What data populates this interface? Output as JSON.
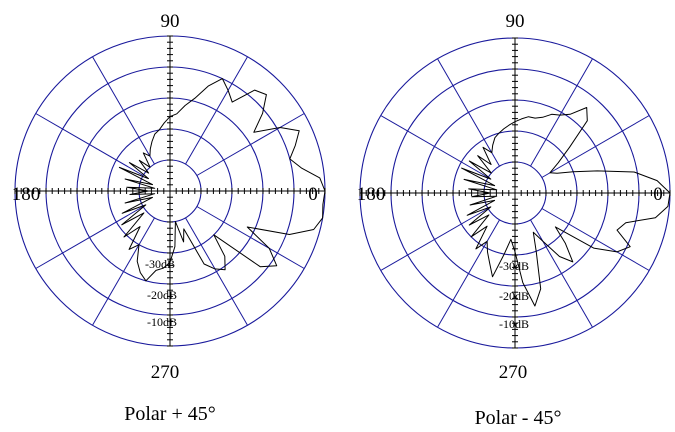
{
  "chart_data": [
    {
      "type": "polar",
      "caption": "Polar + 45°",
      "angle_labels": [
        "90",
        "180",
        "0",
        "270"
      ],
      "db_labels": [
        "-30dB",
        "-20dB",
        "-10dB"
      ],
      "grid": {
        "rings": 5,
        "spoke_step_deg": 30
      },
      "colors": {
        "grid": "#1a1a9c",
        "trace": "#000000"
      },
      "series": [
        {
          "points": [
            [
              0,
              1.0
            ],
            [
              5,
              0.97
            ],
            [
              10,
              0.86
            ],
            [
              15,
              0.8
            ],
            [
              20,
              0.86
            ],
            [
              25,
              0.92
            ],
            [
              30,
              0.82
            ],
            [
              35,
              0.66
            ],
            [
              40,
              0.78
            ],
            [
              45,
              0.88
            ],
            [
              50,
              0.85
            ],
            [
              55,
              0.7
            ],
            [
              60,
              0.75
            ],
            [
              65,
              0.8
            ],
            [
              70,
              0.72
            ],
            [
              75,
              0.62
            ],
            [
              80,
              0.56
            ],
            [
              85,
              0.5
            ],
            [
              90,
              0.48
            ],
            [
              95,
              0.44
            ],
            [
              100,
              0.4
            ],
            [
              105,
              0.38
            ],
            [
              110,
              0.34
            ],
            [
              115,
              0.3
            ],
            [
              120,
              0.26
            ],
            [
              125,
              0.3
            ],
            [
              130,
              0.2
            ],
            [
              135,
              0.28
            ],
            [
              140,
              0.18
            ],
            [
              145,
              0.32
            ],
            [
              150,
              0.16
            ],
            [
              155,
              0.36
            ],
            [
              160,
              0.12
            ],
            [
              165,
              0.3
            ],
            [
              170,
              0.1
            ],
            [
              175,
              0.28
            ],
            [
              180,
              0.14
            ],
            [
              185,
              0.26
            ],
            [
              190,
              0.1
            ],
            [
              195,
              0.3
            ],
            [
              200,
              0.12
            ],
            [
              205,
              0.34
            ],
            [
              210,
              0.18
            ],
            [
              215,
              0.38
            ],
            [
              220,
              0.22
            ],
            [
              225,
              0.42
            ],
            [
              230,
              0.3
            ],
            [
              235,
              0.46
            ],
            [
              240,
              0.4
            ],
            [
              245,
              0.5
            ],
            [
              250,
              0.56
            ],
            [
              255,
              0.6
            ],
            [
              260,
              0.52
            ],
            [
              265,
              0.5
            ],
            [
              270,
              0.46
            ],
            [
              275,
              0.36
            ],
            [
              280,
              0.2
            ],
            [
              285,
              0.34
            ],
            [
              290,
              0.26
            ],
            [
              295,
              0.52
            ],
            [
              300,
              0.58
            ],
            [
              305,
              0.62
            ],
            [
              310,
              0.55
            ],
            [
              315,
              0.4
            ],
            [
              320,
              0.76
            ],
            [
              325,
              0.84
            ],
            [
              330,
              0.74
            ],
            [
              335,
              0.55
            ],
            [
              340,
              0.82
            ],
            [
              345,
              0.96
            ],
            [
              350,
              1.0
            ],
            [
              355,
              0.99
            ]
          ]
        }
      ]
    },
    {
      "type": "polar",
      "caption": "Polar - 45°",
      "angle_labels": [
        "90",
        "180",
        "0",
        "270"
      ],
      "db_labels": [
        "-30dB",
        "-20dB",
        "-10dB"
      ],
      "grid": {
        "rings": 5,
        "spoke_step_deg": 30
      },
      "colors": {
        "grid": "#1a1a9c",
        "trace": "#000000"
      },
      "series": [
        {
          "points": [
            [
              0,
              1.0
            ],
            [
              5,
              0.92
            ],
            [
              10,
              0.78
            ],
            [
              15,
              0.55
            ],
            [
              20,
              0.4
            ],
            [
              25,
              0.3
            ],
            [
              30,
              0.26
            ],
            [
              35,
              0.34
            ],
            [
              40,
              0.46
            ],
            [
              45,
              0.66
            ],
            [
              50,
              0.72
            ],
            [
              55,
              0.62
            ],
            [
              60,
              0.58
            ],
            [
              65,
              0.56
            ],
            [
              70,
              0.52
            ],
            [
              75,
              0.5
            ],
            [
              80,
              0.5
            ],
            [
              85,
              0.48
            ],
            [
              90,
              0.46
            ],
            [
              95,
              0.44
            ],
            [
              100,
              0.42
            ],
            [
              105,
              0.4
            ],
            [
              110,
              0.38
            ],
            [
              115,
              0.34
            ],
            [
              120,
              0.3
            ],
            [
              125,
              0.36
            ],
            [
              130,
              0.24
            ],
            [
              135,
              0.34
            ],
            [
              140,
              0.2
            ],
            [
              145,
              0.36
            ],
            [
              150,
              0.18
            ],
            [
              155,
              0.38
            ],
            [
              160,
              0.14
            ],
            [
              165,
              0.34
            ],
            [
              170,
              0.12
            ],
            [
              175,
              0.3
            ],
            [
              180,
              0.16
            ],
            [
              185,
              0.28
            ],
            [
              190,
              0.12
            ],
            [
              195,
              0.3
            ],
            [
              200,
              0.14
            ],
            [
              205,
              0.34
            ],
            [
              210,
              0.18
            ],
            [
              215,
              0.36
            ],
            [
              220,
              0.22
            ],
            [
              225,
              0.4
            ],
            [
              230,
              0.28
            ],
            [
              235,
              0.44
            ],
            [
              240,
              0.36
            ],
            [
              245,
              0.42
            ],
            [
              250,
              0.48
            ],
            [
              255,
              0.56
            ],
            [
              260,
              0.4
            ],
            [
              265,
              0.3
            ],
            [
              270,
              0.38
            ],
            [
              275,
              0.58
            ],
            [
              280,
              0.74
            ],
            [
              285,
              0.64
            ],
            [
              290,
              0.4
            ],
            [
              295,
              0.28
            ],
            [
              300,
              0.36
            ],
            [
              305,
              0.5
            ],
            [
              310,
              0.58
            ],
            [
              315,
              0.46
            ],
            [
              320,
              0.34
            ],
            [
              325,
              0.62
            ],
            [
              330,
              0.76
            ],
            [
              335,
              0.82
            ],
            [
              340,
              0.7
            ],
            [
              345,
              0.74
            ],
            [
              350,
              0.92
            ],
            [
              355,
              0.99
            ]
          ]
        }
      ]
    }
  ]
}
